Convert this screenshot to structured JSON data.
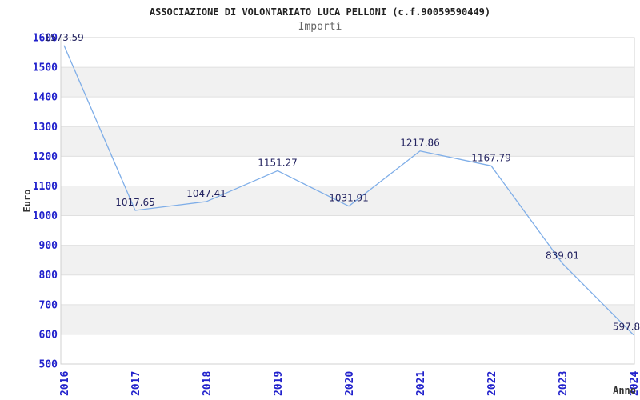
{
  "header": {
    "title": "ASSOCIAZIONE DI VOLONTARIATO LUCA PELLONI (c.f.90059590449)",
    "subtitle": "Importi"
  },
  "chart_data": {
    "type": "line",
    "title": "ASSOCIAZIONE DI VOLONTARIATO LUCA PELLONI (c.f.90059590449)",
    "subtitle": "Importi",
    "xlabel": "Anno",
    "ylabel": "Euro",
    "categories": [
      "2016",
      "2017",
      "2018",
      "2019",
      "2020",
      "2021",
      "2022",
      "2023",
      "2024"
    ],
    "values": [
      1573.59,
      1017.65,
      1047.41,
      1151.27,
      1031.91,
      1217.86,
      1167.79,
      839.01,
      597.8
    ],
    "point_labels": [
      "1573.59",
      "1017.65",
      "1047.41",
      "1151.27",
      "1031.91",
      "1217.86",
      "1167.79",
      "839.01",
      "597.8"
    ],
    "ylim": [
      500,
      1600
    ],
    "ytick_step": 100,
    "ytick_labels": [
      "500",
      "600",
      "700",
      "800",
      "900",
      "1000",
      "1100",
      "1200",
      "1300",
      "1400",
      "1500",
      "1600"
    ],
    "grid": "horizontal-alternating-bands",
    "legend": "none"
  },
  "colors": {
    "line": "#7faee8",
    "axis_tick_label": "#2222cc",
    "point_label": "#232360",
    "band_fill": "#f1f1f1",
    "gridline": "#e0e0e0",
    "plot_border": "#d0d0d0",
    "title": "#222222",
    "subtitle": "#666666",
    "axis_title": "#333333",
    "background": "#ffffff"
  }
}
